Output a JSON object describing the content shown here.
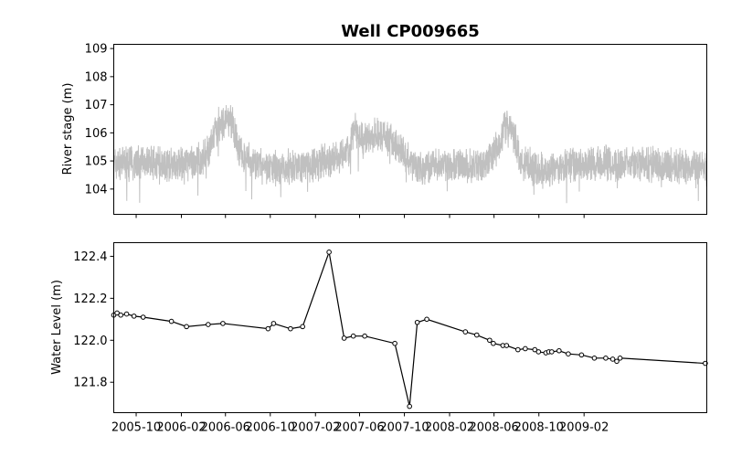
{
  "chart_data": [
    {
      "type": "line",
      "title": "Well CP009665",
      "ylabel": "River stage (m)",
      "ylim": [
        103.1,
        109.15
      ],
      "yticks": [
        104,
        105,
        106,
        107,
        108,
        109
      ],
      "xlim": [
        "2005-08-01",
        "2010-01-01"
      ],
      "xtick_labels_visible": false,
      "grid": false,
      "color": "#c0c0c0",
      "baseline_stage": [
        [
          "2005-08-01",
          104.9
        ],
        [
          "2005-11-01",
          105.0
        ],
        [
          "2006-01-15",
          104.85
        ],
        [
          "2006-03-15",
          104.95
        ],
        [
          "2006-04-15",
          105.3
        ],
        [
          "2006-05-15",
          106.3
        ],
        [
          "2006-06-20",
          106.4
        ],
        [
          "2006-07-10",
          105.3
        ],
        [
          "2006-08-15",
          104.9
        ],
        [
          "2006-10-15",
          104.75
        ],
        [
          "2007-01-01",
          104.85
        ],
        [
          "2007-03-15",
          105.0
        ],
        [
          "2007-05-01",
          105.3
        ],
        [
          "2007-05-15",
          106.1
        ],
        [
          "2007-06-15",
          105.8
        ],
        [
          "2007-08-01",
          105.9
        ],
        [
          "2007-09-15",
          105.5
        ],
        [
          "2007-10-15",
          105.0
        ],
        [
          "2007-11-15",
          104.7
        ],
        [
          "2008-02-01",
          104.9
        ],
        [
          "2008-04-15",
          104.8
        ],
        [
          "2008-05-15",
          105.0
        ],
        [
          "2008-06-15",
          105.6
        ],
        [
          "2008-07-05",
          106.4
        ],
        [
          "2008-07-25",
          105.9
        ],
        [
          "2008-08-15",
          104.9
        ],
        [
          "2008-10-15",
          104.7
        ],
        [
          "2009-01-15",
          104.85
        ],
        [
          "2009-04-01",
          104.95
        ],
        [
          "2010-01-01",
          104.75
        ]
      ]
    },
    {
      "type": "line",
      "ylabel": "Water Level (m)",
      "ylim": [
        121.655,
        122.465
      ],
      "yticks": [
        121.8,
        122.0,
        122.2,
        122.4
      ],
      "ytick_labels": [
        "121.8",
        "122.0",
        "122.2",
        "122.4"
      ],
      "xlim": [
        "2005-08-01",
        "2010-01-01"
      ],
      "xtick_labels": [
        "2005-10",
        "2006-02",
        "2006-06",
        "2006-10",
        "2007-02",
        "2007-06",
        "2007-10",
        "2008-02",
        "2008-06",
        "2008-10",
        "2009-02"
      ],
      "xtick_dates": [
        "2005-10-01",
        "2006-02-01",
        "2006-06-01",
        "2006-10-01",
        "2007-02-01",
        "2007-06-01",
        "2007-10-01",
        "2008-02-01",
        "2008-06-01",
        "2008-10-01",
        "2009-02-01"
      ],
      "grid": false,
      "marker": "open-circle",
      "color": "#000000",
      "points": [
        [
          "2005-08-01",
          122.12
        ],
        [
          "2005-08-10",
          122.13
        ],
        [
          "2005-08-20",
          122.12
        ],
        [
          "2005-09-05",
          122.125
        ],
        [
          "2005-09-25",
          122.115
        ],
        [
          "2005-10-20",
          122.11
        ],
        [
          "2006-01-05",
          122.09
        ],
        [
          "2006-02-15",
          122.065
        ],
        [
          "2006-04-15",
          122.075
        ],
        [
          "2006-05-25",
          122.08
        ],
        [
          "2006-09-25",
          122.055
        ],
        [
          "2006-10-10",
          122.08
        ],
        [
          "2006-11-25",
          122.055
        ],
        [
          "2006-12-28",
          122.065
        ],
        [
          "2007-03-10",
          122.42
        ],
        [
          "2007-04-20",
          122.01
        ],
        [
          "2007-05-15",
          122.02
        ],
        [
          "2007-06-15",
          122.02
        ],
        [
          "2007-09-05",
          121.985
        ],
        [
          "2007-10-15",
          121.685
        ],
        [
          "2007-11-05",
          122.085
        ],
        [
          "2007-12-01",
          122.1
        ],
        [
          "2008-03-15",
          122.04
        ],
        [
          "2008-04-15",
          122.025
        ],
        [
          "2008-05-20",
          122.0
        ],
        [
          "2008-05-30",
          121.985
        ],
        [
          "2008-06-25",
          121.975
        ],
        [
          "2008-07-05",
          121.975
        ],
        [
          "2008-08-05",
          121.955
        ],
        [
          "2008-08-25",
          121.96
        ],
        [
          "2008-09-20",
          121.955
        ],
        [
          "2008-09-30",
          121.945
        ],
        [
          "2008-10-20",
          121.94
        ],
        [
          "2008-10-28",
          121.945
        ],
        [
          "2008-11-05",
          121.945
        ],
        [
          "2008-11-25",
          121.95
        ],
        [
          "2008-12-20",
          121.935
        ],
        [
          "2009-01-25",
          121.93
        ],
        [
          "2009-03-01",
          121.915
        ],
        [
          "2009-04-01",
          121.915
        ],
        [
          "2009-04-20",
          121.91
        ],
        [
          "2009-05-01",
          121.9
        ],
        [
          "2009-05-10",
          121.915
        ],
        [
          "2009-12-28",
          121.89
        ]
      ]
    }
  ]
}
